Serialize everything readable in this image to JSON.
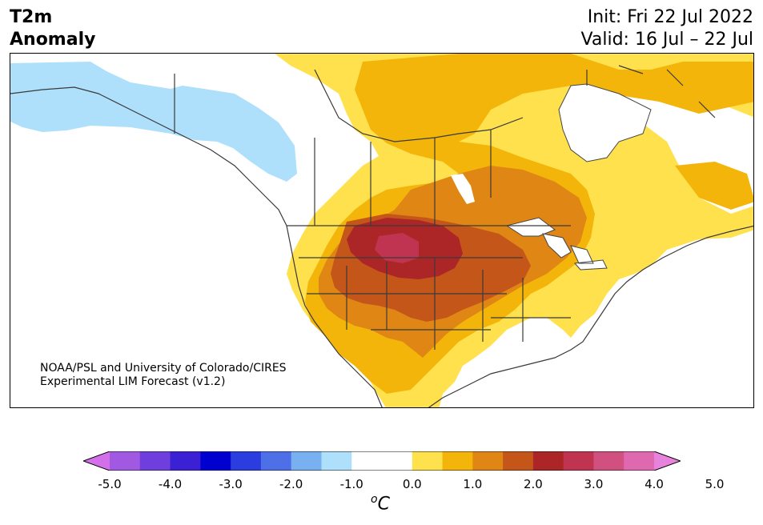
{
  "header": {
    "variable": "T2m",
    "quantity": "Anomaly",
    "init": "Init: Fri 22 Jul 2022",
    "valid": "Valid: 16 Jul – 22 Jul"
  },
  "map": {
    "region": "North America",
    "credit_line1": "NOAA/PSL and University of Colorado/CIRES",
    "credit_line2": "Experimental LIM Forecast (v1.2)"
  },
  "colorbar": {
    "tick_labels": [
      "-5.0",
      "-4.0",
      "-3.0",
      "-2.0",
      "-1.0",
      "0.0",
      "1.0",
      "2.0",
      "3.0",
      "4.0",
      "5.0"
    ],
    "unit_symbol": "o",
    "unit_letter": "C",
    "colors": [
      "#d36fe9",
      "#a159e1",
      "#6e3fdd",
      "#3b20d4",
      "#0000cf",
      "#2b3ddf",
      "#4d70e8",
      "#78b0f1",
      "#aee0fb",
      "#ffffff",
      "#ffffff",
      "#ffe04d",
      "#f3b50a",
      "#df8615",
      "#c4561a",
      "#ac2627",
      "#c03451",
      "#d0507f",
      "#df69b1",
      "#e783dd"
    ]
  }
}
